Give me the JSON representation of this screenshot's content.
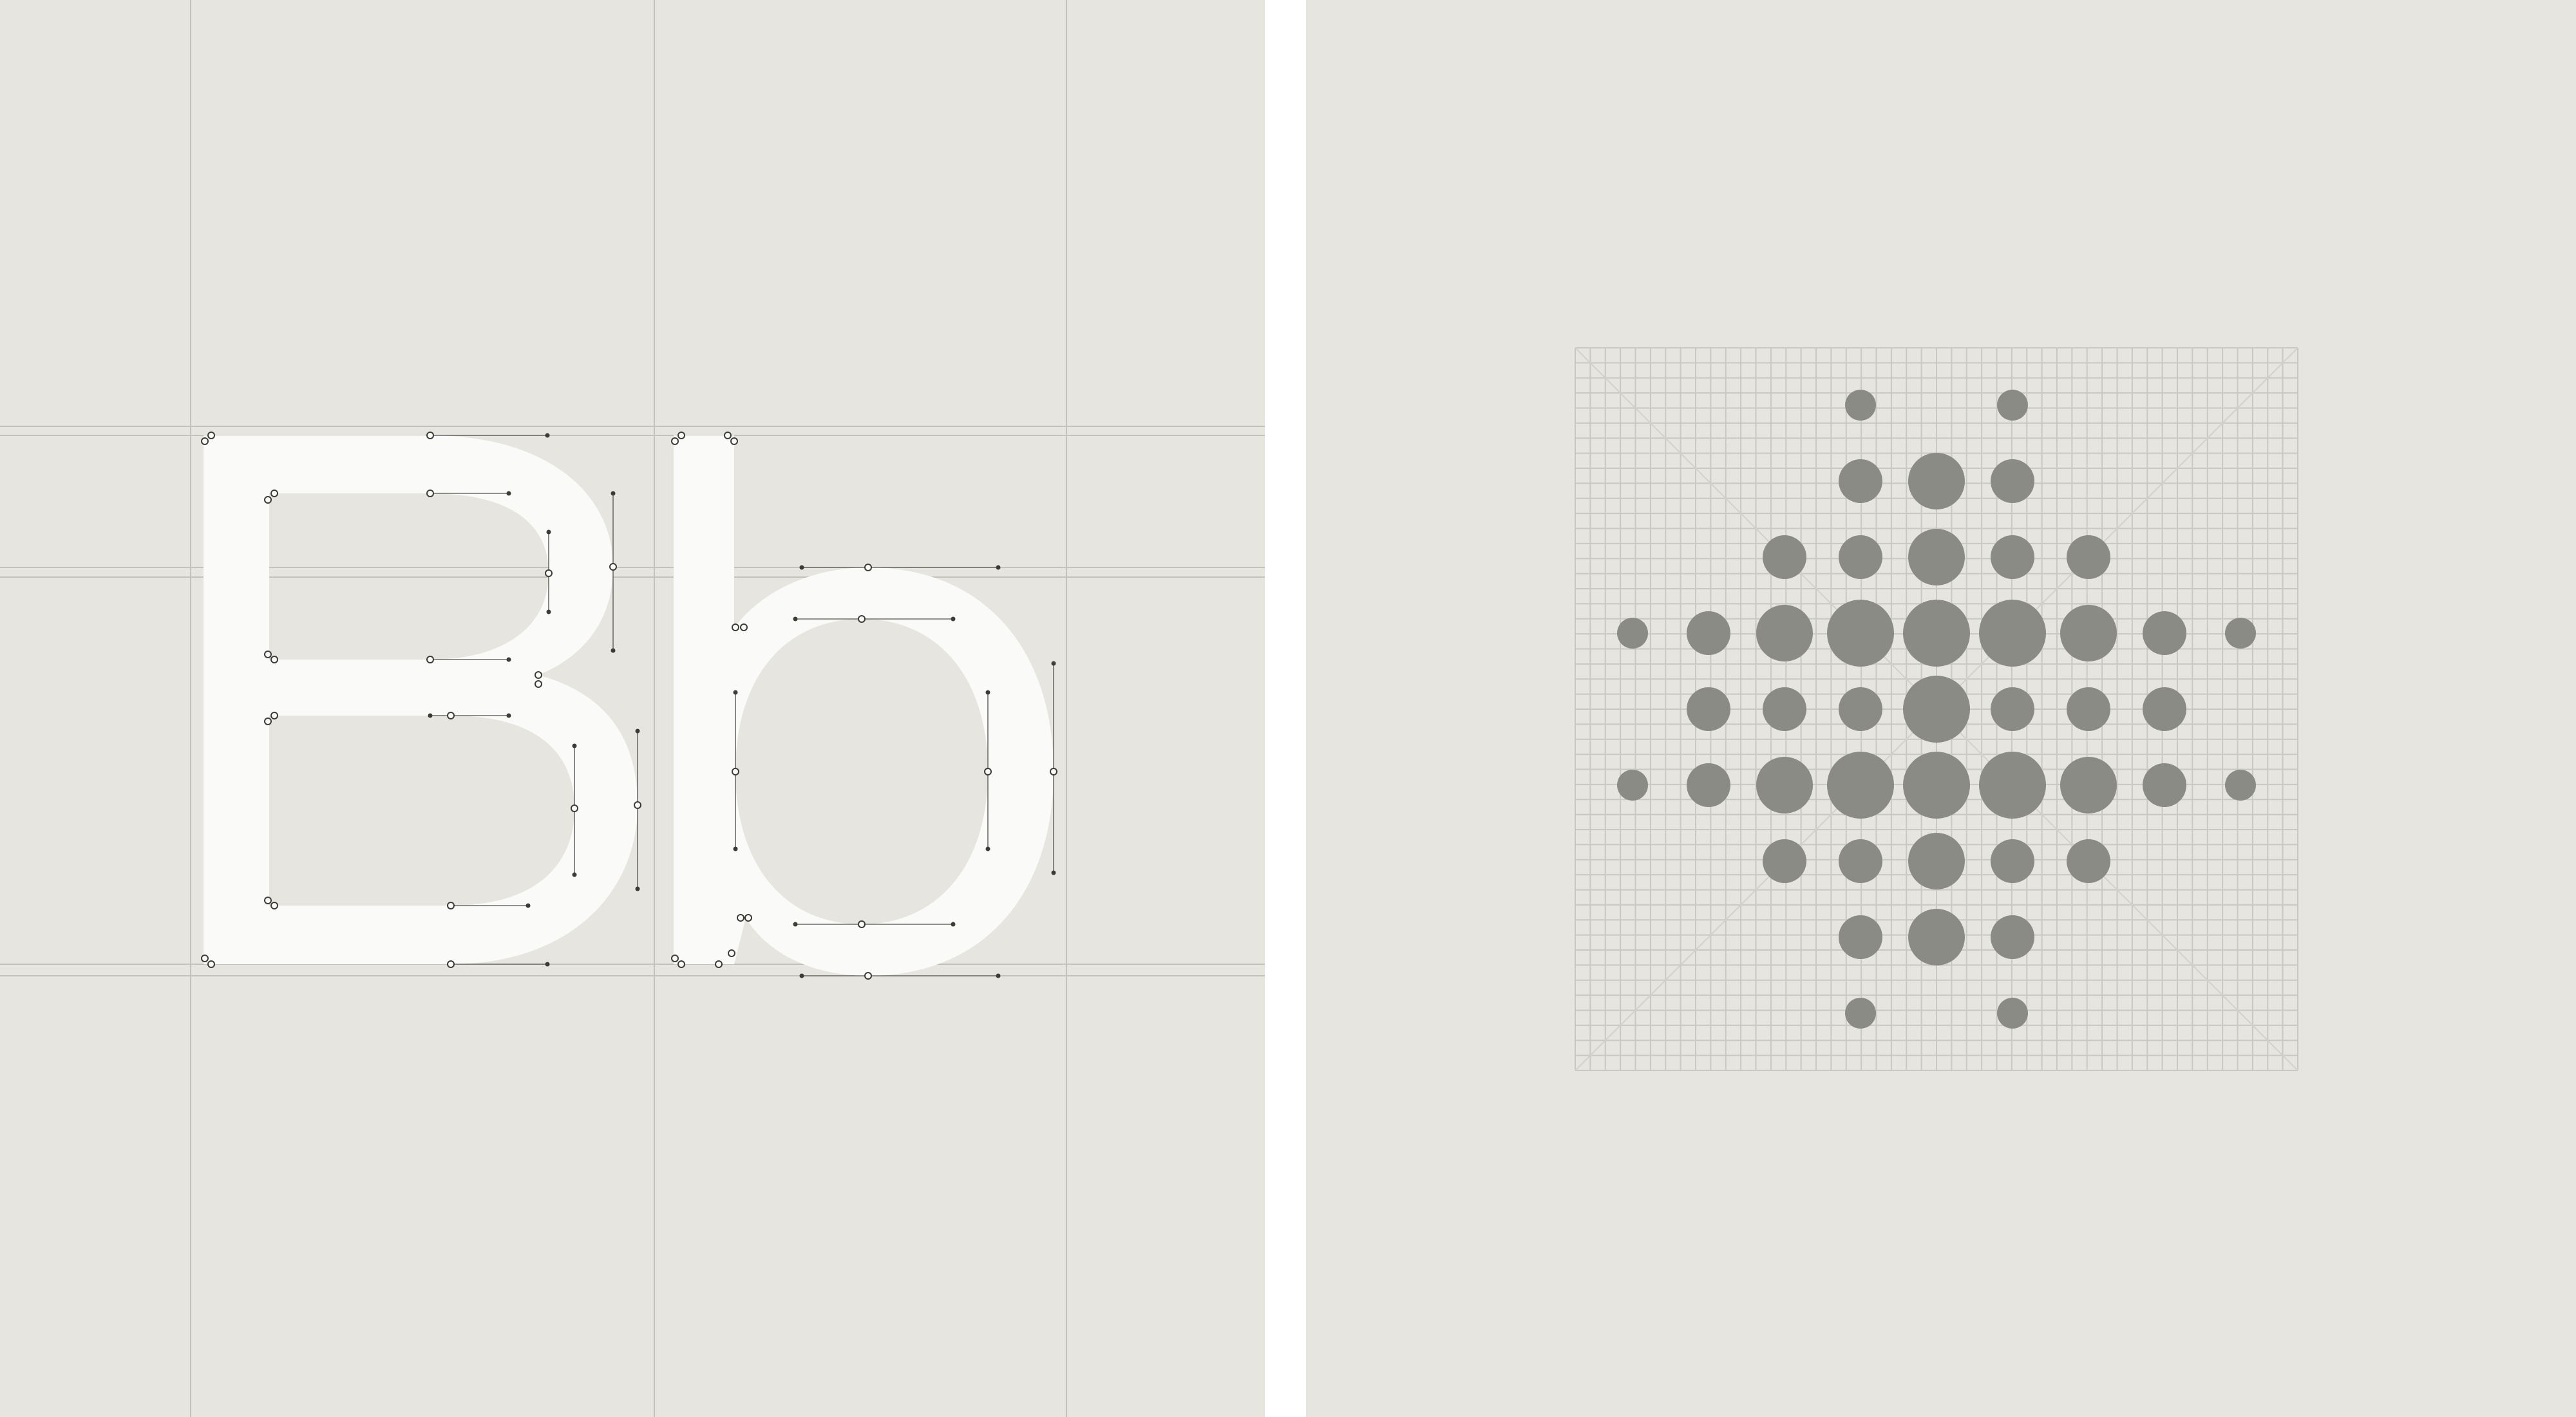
{
  "colors": {
    "background": "#e6e5e0",
    "divider": "#ffffff",
    "glyph": "#fafaf8",
    "guide": "#c3c2bd",
    "node_stroke": "#3c3b38",
    "dot": "#8a8b84",
    "grid": "#c9c8c3"
  },
  "left_panel": {
    "glyphs": [
      "B",
      "b"
    ]
  },
  "right_panel": {
    "grid_cells": 24,
    "dot_pattern": [
      [
        0,
        0,
        0,
        0,
        0,
        0,
        0,
        0,
        0
      ],
      [
        0,
        0,
        0,
        1,
        0,
        1,
        0,
        0,
        0
      ],
      [
        0,
        0,
        0,
        2,
        3,
        2,
        0,
        0,
        0
      ],
      [
        0,
        0,
        2,
        2,
        3,
        2,
        2,
        0,
        0
      ],
      [
        1,
        2,
        3,
        4,
        4,
        4,
        3,
        2,
        1
      ],
      [
        0,
        2,
        2,
        2,
        4,
        2,
        2,
        2,
        0
      ],
      [
        1,
        2,
        3,
        4,
        4,
        4,
        3,
        2,
        1
      ],
      [
        0,
        0,
        2,
        2,
        3,
        2,
        2,
        0,
        0
      ],
      [
        0,
        0,
        0,
        2,
        3,
        2,
        0,
        0,
        0
      ],
      [
        0,
        0,
        0,
        1,
        0,
        1,
        0,
        0,
        0
      ],
      [
        0,
        0,
        0,
        0,
        0,
        0,
        0,
        0,
        0
      ]
    ]
  }
}
